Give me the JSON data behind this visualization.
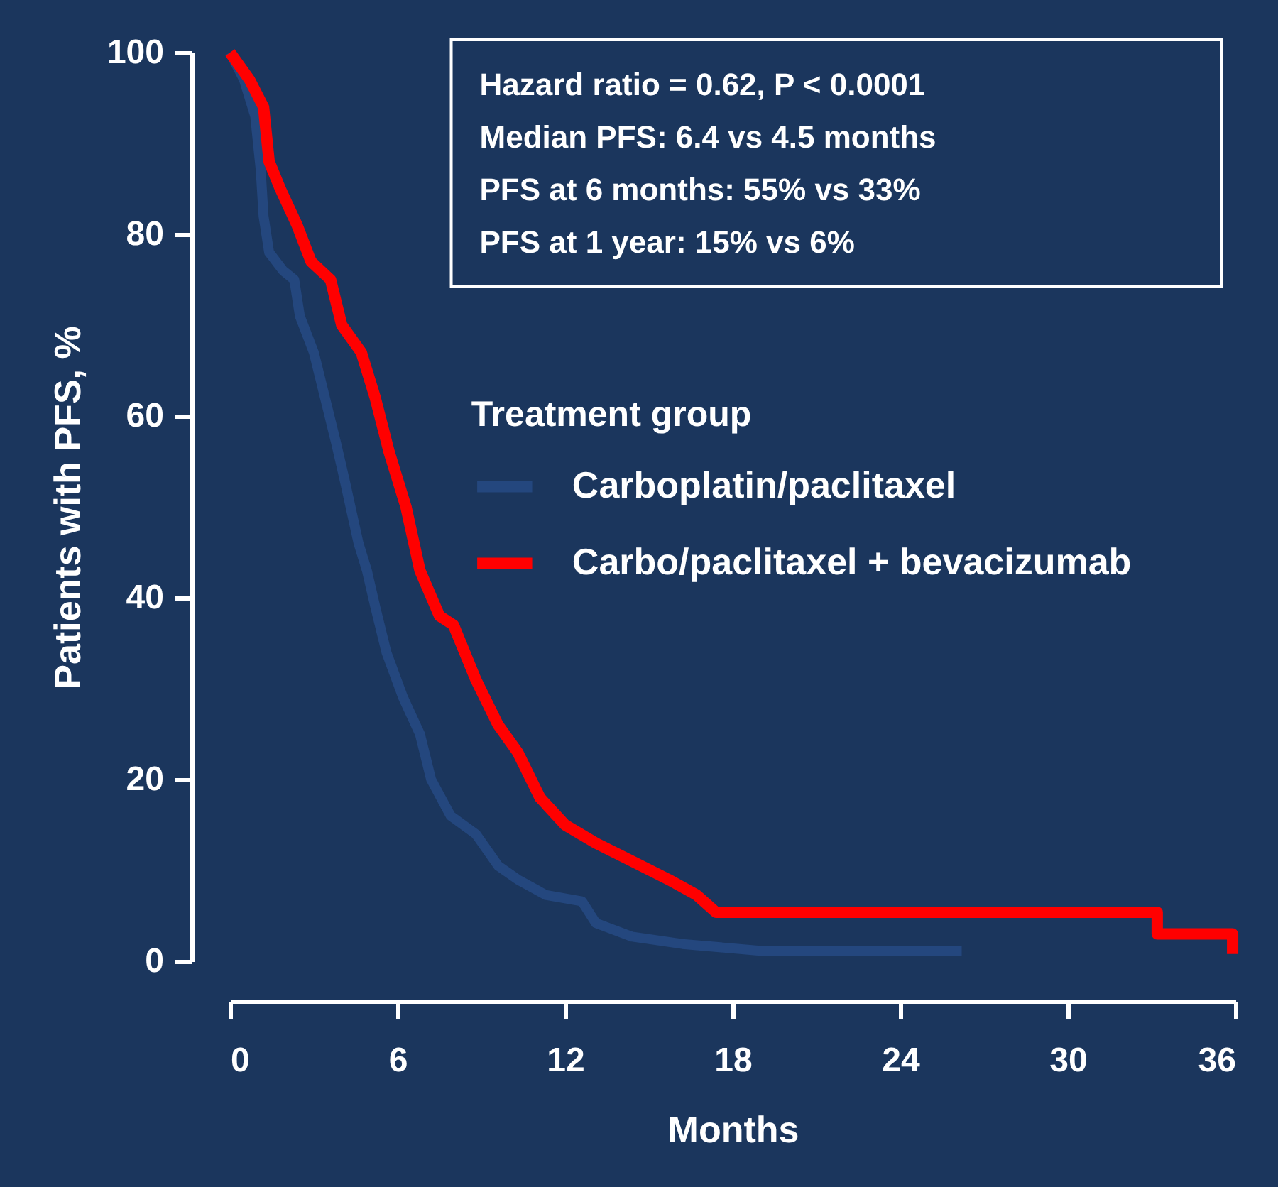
{
  "chart_data": {
    "type": "line",
    "xlabel": "Months",
    "ylabel": "Patients with PFS, %",
    "legend_title": "Treatment group",
    "annotations": [
      "Hazard ratio = 0.62, P < 0.0001",
      "Median PFS: 6.4 vs 4.5 months",
      "PFS at 6 months: 55% vs 33%",
      "PFS at 1 year: 15% vs 6%"
    ],
    "xlim": [
      0,
      36
    ],
    "xticks": [
      0,
      6,
      12,
      18,
      24,
      30,
      36
    ],
    "ylim": [
      0,
      100
    ],
    "yticks": [
      0,
      20,
      40,
      60,
      80,
      100
    ],
    "grid": false,
    "legend": "right",
    "marker": "none",
    "line_style": "solid",
    "series": [
      {
        "name": "Carboplatin/paclitaxel",
        "color": "#24477e",
        "x": [
          0,
          0.5,
          0.9,
          1.1,
          1.2,
          1.4,
          1.9,
          2.3,
          2.5,
          3,
          3.4,
          3.8,
          4.1,
          4.6,
          4.9,
          5.2,
          5.6,
          6.2,
          6.8,
          7.2,
          7.9,
          8.8,
          9.6,
          10.3,
          11.3,
          12.6,
          13.1,
          14.4,
          16.2,
          19.2,
          26.2
        ],
        "values": [
          100,
          97,
          93,
          87,
          82,
          78,
          76,
          75,
          71,
          67,
          62,
          57,
          53,
          46,
          43,
          39,
          34,
          29,
          25,
          20,
          16,
          14,
          10.5,
          9,
          7.3,
          6.6,
          4.2,
          2.7,
          1.9,
          1.1,
          1.1
        ]
      },
      {
        "name": "Carbo/paclitaxel + bevacizumab",
        "color": "#ff0000",
        "x": [
          0,
          0.7,
          1.2,
          1.4,
          1.8,
          2.4,
          2.9,
          3.6,
          4,
          4.7,
          5.2,
          5.7,
          6.3,
          6.8,
          7.5,
          8,
          8.8,
          9.6,
          10.3,
          11.1,
          12,
          13.1,
          14.4,
          15.7,
          16.7,
          17.4,
          33.2,
          33.2,
          35.9,
          35.9
        ],
        "values": [
          100,
          97,
          94,
          88,
          85,
          81,
          77,
          75,
          70,
          67,
          62,
          56,
          50,
          43,
          38,
          37,
          31,
          26,
          23,
          18,
          15,
          13,
          11,
          9,
          7.3,
          5.4,
          5.4,
          3,
          3,
          0.8
        ]
      }
    ]
  }
}
